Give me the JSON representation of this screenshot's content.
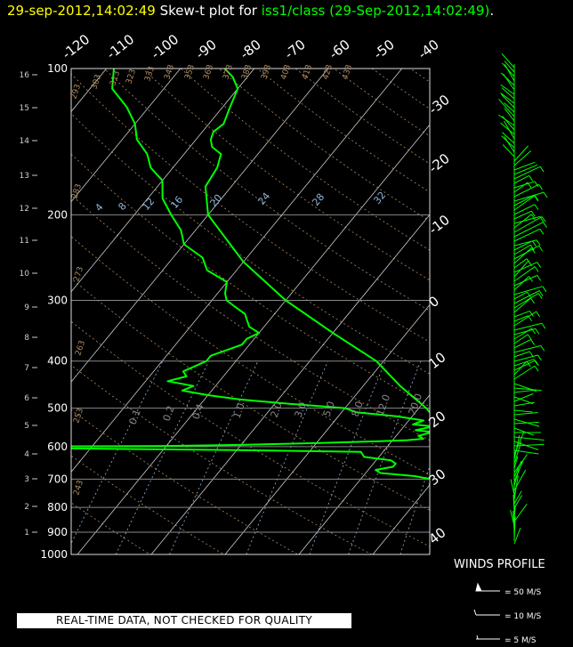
{
  "header": {
    "timestamp": "29-sep-2012,14:02:49",
    "plot_title": "Skew-t plot for",
    "source": "iss1/class (29-Sep-2012,14:02:49)",
    "period": "."
  },
  "quality_notice": "REAL-TIME DATA, NOT CHECKED FOR QUALITY",
  "winds_profile": {
    "title": "WINDS PROFILE",
    "legend": [
      "= 50 M/S",
      "= 10 M/S",
      "= 5 M/S"
    ]
  },
  "colors": {
    "background": "#000000",
    "trace": "#00ff00",
    "timestamp": "#ffff00",
    "isobar": "#888888",
    "isotherm": "#cccccc",
    "dry_adiabat": "#b08a60",
    "mixing_ratio": "#8fb4d9"
  },
  "chart_data": {
    "type": "line",
    "title": "Skew-t plot",
    "pressure_axis": {
      "levels_hPa": [
        100,
        200,
        300,
        400,
        500,
        600,
        700,
        800,
        900,
        1000
      ],
      "ylim": [
        1000,
        100
      ]
    },
    "height_axis_km": [
      "1",
      "2",
      "3",
      "4",
      "5",
      "6",
      "7",
      "8",
      "9",
      "10",
      "11",
      "12",
      "13",
      "14",
      "15",
      "16"
    ],
    "isotherm_labels_top": [
      "-120",
      "-110",
      "-100",
      "-90",
      "-80",
      "-70",
      "-60",
      "-50",
      "-40"
    ],
    "isotherm_labels_right": [
      "-30",
      "-20",
      "-10",
      "0",
      "10",
      "20",
      "30",
      "40"
    ],
    "dry_adiabat_labels": [
      "293",
      "303",
      "313",
      "323",
      "333",
      "343",
      "353",
      "363",
      "373",
      "383",
      "393",
      "403",
      "413",
      "423",
      "433",
      "283",
      "273",
      "263",
      "253",
      "243"
    ],
    "mixing_ratio_labels_upper": [
      "4",
      "8",
      "12",
      "16",
      "20",
      "24",
      "28",
      "32"
    ],
    "mixing_ratio_labels_lower": [
      "0.1",
      "0.2",
      "0.4",
      "1.0",
      "2.0",
      "3.0",
      "5.0",
      "8.0",
      "12.0",
      "20.0"
    ],
    "series": [
      {
        "kind": "temperature",
        "points": [
          [
            1000,
            27.8
          ],
          [
            990,
            27
          ],
          [
            960,
            24.2
          ],
          [
            930,
            23.4
          ],
          [
            900,
            21
          ],
          [
            850,
            17.5
          ],
          [
            800,
            14.2
          ],
          [
            750,
            10.6
          ],
          [
            700,
            7.5
          ],
          [
            650,
            4
          ],
          [
            600,
            0
          ],
          [
            580,
            -2
          ],
          [
            550,
            -4.5
          ],
          [
            500,
            -9
          ],
          [
            450,
            -15
          ],
          [
            400,
            -21
          ],
          [
            350,
            -30
          ],
          [
            300,
            -40
          ],
          [
            250,
            -50
          ],
          [
            200,
            -60
          ],
          [
            175,
            -63.5
          ],
          [
            160,
            -64
          ],
          [
            150,
            -65
          ],
          [
            145,
            -67
          ],
          [
            140,
            -68
          ],
          [
            135,
            -68.5
          ],
          [
            130,
            -68
          ],
          [
            120,
            -69
          ],
          [
            110,
            -70
          ],
          [
            104,
            -72
          ],
          [
            100,
            -74
          ]
        ]
      },
      {
        "kind": "dewpoint",
        "points": [
          [
            1000,
            19
          ],
          [
            970,
            17
          ],
          [
            950,
            15.5
          ],
          [
            930,
            14.5
          ],
          [
            900,
            13.5
          ],
          [
            860,
            10.5
          ],
          [
            820,
            9
          ],
          [
            800,
            8
          ],
          [
            780,
            7
          ],
          [
            760,
            5.5
          ],
          [
            740,
            3
          ],
          [
            720,
            0
          ],
          [
            700,
            -0.5
          ],
          [
            690,
            -3
          ],
          [
            680,
            -8
          ],
          [
            670,
            -9
          ],
          [
            660,
            -7
          ],
          [
            650,
            -7
          ],
          [
            640,
            -8
          ],
          [
            630,
            -12
          ],
          [
            615,
            -13
          ],
          [
            610,
            -30
          ],
          [
            603,
            -62
          ],
          [
            600,
            -66
          ],
          [
            598,
            -40
          ],
          [
            595,
            -30
          ],
          [
            590,
            -20
          ],
          [
            585,
            -12
          ],
          [
            582,
            -8
          ],
          [
            578,
            -6
          ],
          [
            570,
            -7
          ],
          [
            560,
            -5.5
          ],
          [
            555,
            -8
          ],
          [
            545,
            -6
          ],
          [
            540,
            -9
          ],
          [
            530,
            -8
          ],
          [
            520,
            -12
          ],
          [
            510,
            -18
          ],
          [
            500,
            -20
          ],
          [
            490,
            -28
          ],
          [
            480,
            -35
          ],
          [
            470,
            -40
          ],
          [
            460,
            -44
          ],
          [
            450,
            -43
          ],
          [
            440,
            -47
          ],
          [
            430,
            -45
          ],
          [
            420,
            -46
          ],
          [
            410,
            -45
          ],
          [
            400,
            -44
          ],
          [
            390,
            -44
          ],
          [
            380,
            -42.5
          ],
          [
            370,
            -41
          ],
          [
            360,
            -41
          ],
          [
            350,
            -40
          ],
          [
            340,
            -42
          ],
          [
            330,
            -43
          ],
          [
            320,
            -44
          ],
          [
            310,
            -46
          ],
          [
            300,
            -48
          ],
          [
            290,
            -49
          ],
          [
            275,
            -50
          ],
          [
            260,
            -54
          ],
          [
            245,
            -56
          ],
          [
            230,
            -60
          ],
          [
            215,
            -62
          ],
          [
            200,
            -65
          ],
          [
            185,
            -68
          ],
          [
            170,
            -70
          ],
          [
            160,
            -73
          ],
          [
            150,
            -75
          ],
          [
            140,
            -78
          ],
          [
            130,
            -80
          ],
          [
            120,
            -83
          ],
          [
            110,
            -87
          ],
          [
            100,
            -89
          ]
        ]
      }
    ]
  }
}
